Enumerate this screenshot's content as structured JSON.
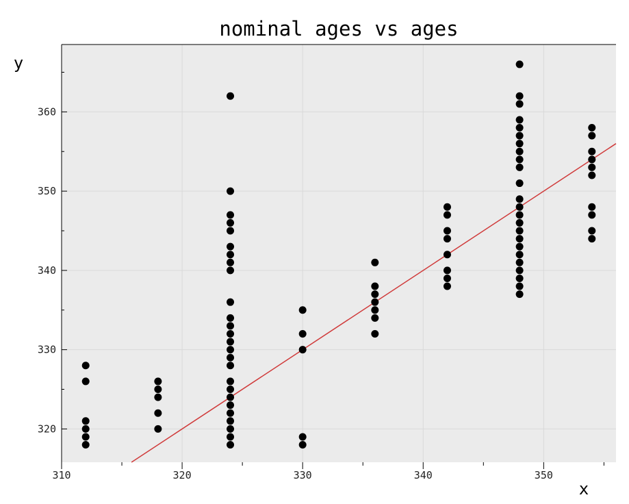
{
  "chart_data": {
    "type": "scatter",
    "title": "nominal ages vs ages",
    "xlabel": "x",
    "ylabel": "y",
    "xlim": [
      310,
      356
    ],
    "ylim": [
      315.8,
      368.5
    ],
    "xticks": [
      310,
      320,
      330,
      340,
      350
    ],
    "yticks": [
      320,
      330,
      340,
      350,
      360
    ],
    "grid": true,
    "colors": {
      "background": "#ebebeb",
      "grid": "#d9d9d9",
      "points": "#000000",
      "fit_line": "#d03a3a",
      "frame": "#000000"
    },
    "series": [
      {
        "type": "scatter",
        "points": [
          [
            312,
            318
          ],
          [
            312,
            319
          ],
          [
            312,
            320
          ],
          [
            312,
            321
          ],
          [
            312,
            326
          ],
          [
            312,
            328
          ],
          [
            318,
            320
          ],
          [
            318,
            322
          ],
          [
            318,
            324
          ],
          [
            318,
            325
          ],
          [
            318,
            326
          ],
          [
            324,
            318
          ],
          [
            324,
            319
          ],
          [
            324,
            320
          ],
          [
            324,
            321
          ],
          [
            324,
            322
          ],
          [
            324,
            323
          ],
          [
            324,
            324
          ],
          [
            324,
            325
          ],
          [
            324,
            326
          ],
          [
            324,
            328
          ],
          [
            324,
            329
          ],
          [
            324,
            330
          ],
          [
            324,
            331
          ],
          [
            324,
            332
          ],
          [
            324,
            333
          ],
          [
            324,
            334
          ],
          [
            324,
            336
          ],
          [
            324,
            340
          ],
          [
            324,
            341
          ],
          [
            324,
            342
          ],
          [
            324,
            343
          ],
          [
            324,
            345
          ],
          [
            324,
            346
          ],
          [
            324,
            347
          ],
          [
            324,
            350
          ],
          [
            324,
            362
          ],
          [
            330,
            318
          ],
          [
            330,
            319
          ],
          [
            330,
            330
          ],
          [
            330,
            332
          ],
          [
            330,
            335
          ],
          [
            336,
            332
          ],
          [
            336,
            334
          ],
          [
            336,
            335
          ],
          [
            336,
            336
          ],
          [
            336,
            337
          ],
          [
            336,
            338
          ],
          [
            336,
            341
          ],
          [
            342,
            338
          ],
          [
            342,
            339
          ],
          [
            342,
            340
          ],
          [
            342,
            342
          ],
          [
            342,
            344
          ],
          [
            342,
            345
          ],
          [
            342,
            347
          ],
          [
            342,
            348
          ],
          [
            348,
            337
          ],
          [
            348,
            338
          ],
          [
            348,
            339
          ],
          [
            348,
            340
          ],
          [
            348,
            341
          ],
          [
            348,
            342
          ],
          [
            348,
            343
          ],
          [
            348,
            344
          ],
          [
            348,
            345
          ],
          [
            348,
            346
          ],
          [
            348,
            347
          ],
          [
            348,
            348
          ],
          [
            348,
            349
          ],
          [
            348,
            351
          ],
          [
            348,
            353
          ],
          [
            348,
            354
          ],
          [
            348,
            355
          ],
          [
            348,
            356
          ],
          [
            348,
            357
          ],
          [
            348,
            358
          ],
          [
            348,
            359
          ],
          [
            348,
            361
          ],
          [
            348,
            362
          ],
          [
            348,
            366
          ],
          [
            354,
            344
          ],
          [
            354,
            345
          ],
          [
            354,
            347
          ],
          [
            354,
            348
          ],
          [
            354,
            352
          ],
          [
            354,
            353
          ],
          [
            354,
            354
          ],
          [
            354,
            355
          ],
          [
            354,
            357
          ],
          [
            354,
            358
          ]
        ]
      },
      {
        "type": "line",
        "points": [
          [
            315.8,
            315.8
          ],
          [
            356,
            356
          ]
        ]
      }
    ]
  }
}
